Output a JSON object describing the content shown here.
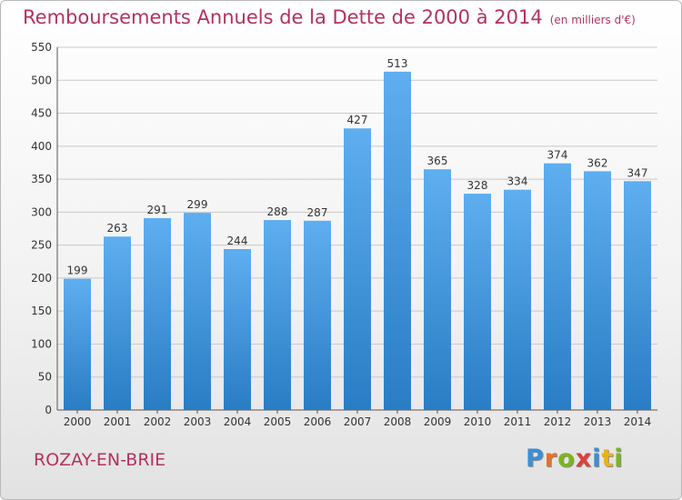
{
  "title": "Remboursements Annuels de la Dette de 2000 à 2014",
  "unit": "(en milliers d'€)",
  "commune": "ROZAY-EN-BRIE",
  "brand": {
    "letters": [
      "P",
      "r",
      "o",
      "x",
      "i",
      "t",
      "i"
    ],
    "colors": [
      "#3a8fd6",
      "#e8702a",
      "#7cb51f",
      "#d9413a",
      "#3a8fd6",
      "#e8b21a",
      "#7cb51f"
    ]
  },
  "colors": {
    "bar_top": "#5eaef0",
    "bar_bottom": "#2a7dc4",
    "grid": "#c9c9c9",
    "axis_text": "#333333",
    "title": "#b3325f"
  },
  "chart_data": {
    "type": "bar",
    "categories": [
      "2000",
      "2001",
      "2002",
      "2003",
      "2004",
      "2005",
      "2006",
      "2007",
      "2008",
      "2009",
      "2010",
      "2011",
      "2012",
      "2013",
      "2014"
    ],
    "values": [
      199,
      263,
      291,
      299,
      244,
      288,
      287,
      427,
      513,
      365,
      328,
      334,
      374,
      362,
      347
    ],
    "title": "Remboursements Annuels de la Dette de 2000 à 2014",
    "xlabel": "",
    "ylabel": "",
    "ylim": [
      0,
      550
    ],
    "yticks": [
      0,
      50,
      100,
      150,
      200,
      250,
      300,
      350,
      400,
      450,
      500,
      550
    ],
    "grid": true,
    "data_labels": true
  }
}
